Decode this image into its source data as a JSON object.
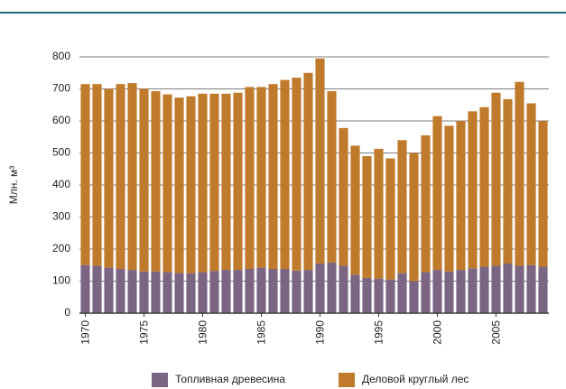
{
  "chart_data": {
    "type": "bar",
    "stacked": true,
    "y_label": "Млн. м³",
    "categories": [
      "1970",
      null,
      null,
      null,
      null,
      "1975",
      null,
      null,
      null,
      null,
      "1980",
      null,
      null,
      null,
      null,
      "1985",
      null,
      null,
      null,
      null,
      "1990",
      null,
      null,
      null,
      null,
      "1995",
      null,
      null,
      null,
      null,
      "2000",
      null,
      null,
      null,
      null,
      "2005",
      null,
      null,
      null,
      null
    ],
    "series": [
      {
        "name": "Топливная древесина",
        "color": "#7b6582",
        "values": [
          150,
          148,
          142,
          138,
          135,
          130,
          130,
          128,
          125,
          125,
          128,
          132,
          135,
          135,
          138,
          142,
          138,
          138,
          133,
          135,
          155,
          158,
          148,
          120,
          110,
          108,
          105,
          125,
          100,
          128,
          135,
          130,
          135,
          140,
          145,
          148,
          155,
          148,
          150,
          145
        ]
      },
      {
        "name": "Деловой круглый лес",
        "color": "#c07a2c",
        "values": [
          565,
          567,
          558,
          577,
          583,
          570,
          563,
          555,
          548,
          552,
          557,
          553,
          550,
          553,
          568,
          564,
          577,
          590,
          602,
          615,
          640,
          535,
          430,
          403,
          380,
          405,
          378,
          415,
          400,
          427,
          480,
          455,
          465,
          490,
          498,
          540,
          513,
          574,
          505,
          455
        ]
      }
    ],
    "ylim": [
      0,
      800
    ],
    "yticks": [
      0,
      100,
      200,
      300,
      400,
      500,
      600,
      700,
      800
    ],
    "grid": true,
    "legend": "bottom"
  }
}
